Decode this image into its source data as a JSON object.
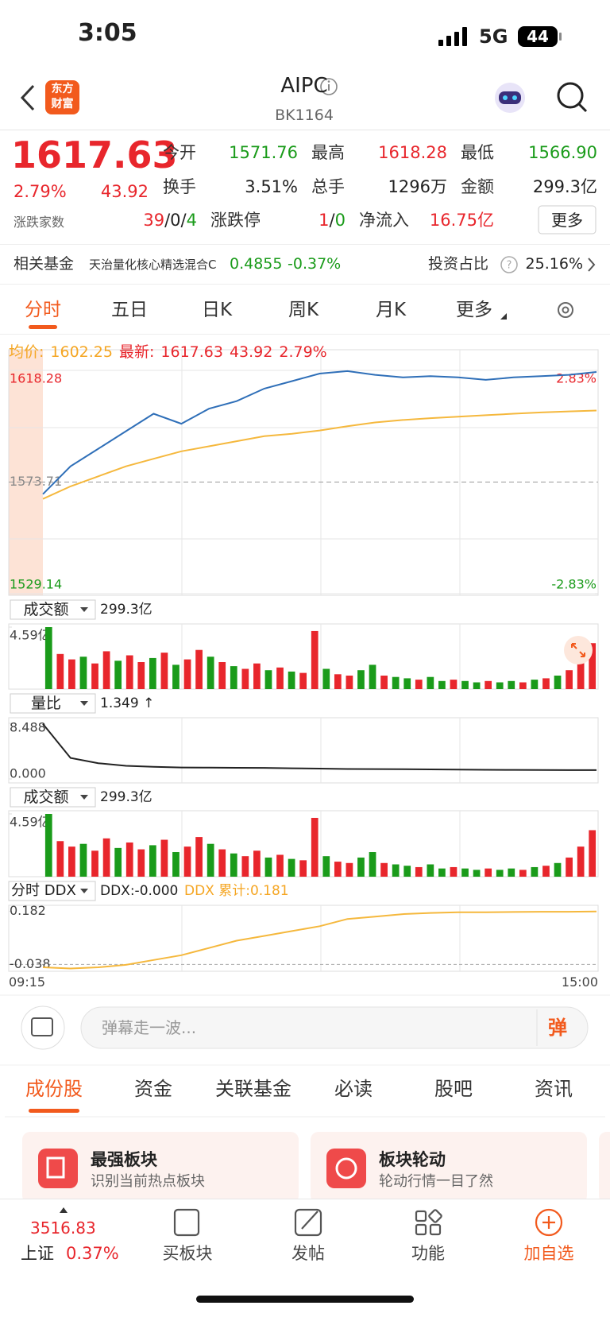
{
  "status": {
    "time": "3:05",
    "network": "5G",
    "battery": "44"
  },
  "header": {
    "logo": [
      "东方",
      "财富"
    ],
    "title": "AIPC",
    "code": "BK1164"
  },
  "quote": {
    "price": "1617.63",
    "change_pct": "2.79%",
    "change": "43.92",
    "fields": [
      {
        "label": "今开",
        "value": "1571.76",
        "color": "#1a9b1a"
      },
      {
        "label": "最高",
        "value": "1618.28",
        "color": "#e8262c"
      },
      {
        "label": "最低",
        "value": "1566.90",
        "color": "#1a9b1a"
      },
      {
        "label": "换手",
        "value": "3.51%",
        "color": "#222222"
      },
      {
        "label": "总手",
        "value": "1296万",
        "color": "#222222"
      },
      {
        "label": "金额",
        "value": "299.3亿",
        "color": "#222222"
      }
    ],
    "breadth": {
      "label": "涨跌家数",
      "parts": [
        "39",
        "/",
        "0",
        "/",
        "4"
      ],
      "colors": [
        "#e8262c",
        "#222222",
        "#222222",
        "#222222",
        "#1a9b1a"
      ]
    },
    "limit": {
      "label": "涨跌停",
      "parts": [
        "1",
        "/",
        "0"
      ],
      "colors": [
        "#e8262c",
        "#222222",
        "#1a9b1a"
      ]
    },
    "inflow": {
      "label": "净流入",
      "value": "16.75亿"
    },
    "more": "更多"
  },
  "fund": {
    "label": "相关基金",
    "name": "天治量化核心精选混合C",
    "price": "0.4855",
    "change": "-0.37%",
    "ratio_label": "投资占比",
    "ratio": "25.16%"
  },
  "tabs": {
    "items": [
      "分时",
      "五日",
      "日K",
      "周K",
      "月K",
      "更多"
    ],
    "active": 0
  },
  "legend": {
    "avg_label": "均价:",
    "avg": "1602.25",
    "last_label": "最新:",
    "last": "1617.63",
    "change": "43.92",
    "pct": "2.79%"
  },
  "price_chart": {
    "type": "line",
    "ylim": [
      1529.14,
      1618.28
    ],
    "yticks": [
      1529.14,
      1573.71,
      1618.28
    ],
    "y2lim": [
      -2.83,
      2.83
    ],
    "y2ticks": [
      {
        "value": -2.83,
        "label": "-2.83%"
      },
      {
        "value": 2.83,
        "label": "2.83%"
      }
    ],
    "series": [
      {
        "color": "#2f6fb8",
        "values": [
          1568.9,
          1580,
          1587,
          1594,
          1601,
          1597,
          1603,
          1606,
          1611,
          1614,
          1617,
          1618,
          1616.5,
          1615.5,
          1616,
          1615.5,
          1614.5,
          1615.5,
          1616,
          1616.5,
          1617.63
        ]
      },
      {
        "color": "#f5b83d",
        "values": [
          1567,
          1572,
          1576,
          1580,
          1583,
          1586,
          1588,
          1590,
          1592,
          1593,
          1594.3,
          1596,
          1597.5,
          1598.5,
          1599.2,
          1599.8,
          1600.4,
          1601,
          1601.5,
          1601.9,
          1602.25
        ]
      }
    ]
  },
  "volume_panels": [
    {
      "label": "成交额",
      "value": "299.3亿"
    },
    {
      "label": "成交额",
      "value": "299.3亿"
    }
  ],
  "volume": {
    "type": "bar",
    "ylim": [
      0,
      4.59
    ],
    "yticks": [
      {
        "value": 4.59,
        "label": "4.59亿"
      }
    ],
    "values": [
      4.59,
      2.6,
      2.2,
      2.4,
      1.9,
      2.8,
      2.1,
      2.5,
      2.0,
      2.3,
      2.7,
      1.8,
      2.2,
      2.9,
      2.4,
      2.0,
      1.7,
      1.5,
      1.9,
      1.4,
      1.6,
      1.3,
      1.2,
      4.3,
      1.5,
      1.1,
      1.0,
      1.4,
      1.8,
      1.0,
      0.9,
      0.8,
      0.7,
      0.9,
      0.6,
      0.7,
      0.6,
      0.5,
      0.6,
      0.5,
      0.6,
      0.5,
      0.7,
      0.8,
      1.0,
      1.4,
      2.2,
      3.4
    ],
    "up": [
      false,
      true,
      true,
      false,
      true,
      true,
      false,
      true,
      true,
      false,
      true,
      false,
      true,
      true,
      false,
      true,
      false,
      true,
      true,
      false,
      true,
      false,
      true,
      true,
      false,
      true,
      true,
      false,
      false,
      true,
      false,
      false,
      true,
      false,
      false,
      true,
      false,
      false,
      true,
      false,
      false,
      true,
      false,
      true,
      false,
      true,
      true,
      true
    ],
    "colors": {
      "up": "#e8262c",
      "down": "#1a9b1a"
    }
  },
  "ratio_chart": {
    "type": "line",
    "label": "量比",
    "value": "1.349 ↑",
    "ylim": [
      0,
      8.488
    ],
    "yticks": [
      8.488,
      {
        "value": 0,
        "label": "0.000"
      }
    ],
    "color": "#222222",
    "values": [
      8.4,
      3.2,
      2.4,
      2.0,
      1.85,
      1.75,
      1.72,
      1.7,
      1.68,
      1.62,
      1.58,
      1.52,
      1.5,
      1.48,
      1.45,
      1.42,
      1.4,
      1.38,
      1.36,
      1.35,
      1.349
    ]
  },
  "ddx_chart": {
    "type": "line",
    "label": "分时 DDX",
    "ddx": "DDX:-0.000",
    "cumulative": "DDX 累计:0.181",
    "ylim": [
      -0.06,
      0.2
    ],
    "yticks": [
      0.182,
      -0.038
    ],
    "color": "#f5b83d",
    "values": [
      -0.05,
      -0.055,
      -0.05,
      -0.04,
      -0.02,
      0.0,
      0.03,
      0.06,
      0.08,
      0.1,
      0.12,
      0.15,
      0.16,
      0.17,
      0.175,
      0.178,
      0.178,
      0.179,
      0.18,
      0.18,
      0.181
    ]
  },
  "time_axis": [
    "09:15",
    "15:00"
  ],
  "comment": {
    "placeholder": "弹幕走一波...",
    "button": "弹"
  },
  "sections": {
    "items": [
      "成份股",
      "资金",
      "关联基金",
      "必读",
      "股吧",
      "资讯"
    ],
    "active": 0
  },
  "cards": [
    {
      "title": "最强板块",
      "desc": "识别当前热点板块"
    },
    {
      "title": "板块轮动",
      "desc": "轮动行情一目了然"
    }
  ],
  "nav": {
    "index_value": "3516.83",
    "index_name": "上证",
    "index_pct": "0.37%",
    "items": [
      "买板块",
      "发帖",
      "功能",
      "加自选"
    ]
  }
}
